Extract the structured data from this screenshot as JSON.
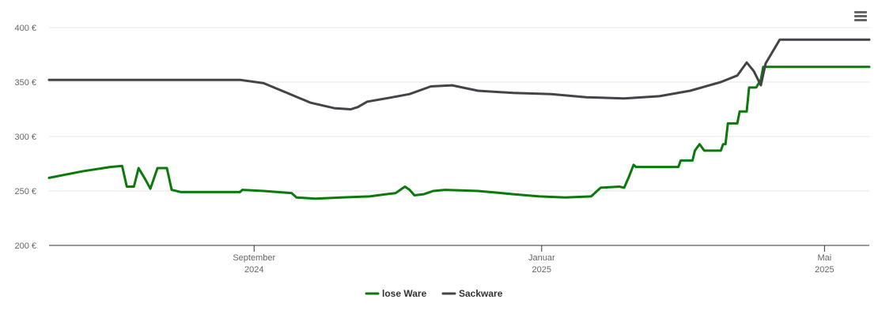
{
  "menu": {
    "icon": "hamburger-menu-icon"
  },
  "chart_data": {
    "type": "line",
    "title": "",
    "xlabel": "",
    "ylabel": "",
    "ylim": [
      200,
      400
    ],
    "y_ticks": [
      "200 €",
      "250 €",
      "300 €",
      "350 €",
      "400 €"
    ],
    "y_tick_values": [
      200,
      250,
      300,
      350,
      400
    ],
    "x_range": [
      "2024-06-06",
      "2025-05-20"
    ],
    "x_ticks": [
      {
        "date": "2024-09-01",
        "month": "September",
        "year": "2024"
      },
      {
        "date": "2025-01-01",
        "month": "Januar",
        "year": "2025"
      },
      {
        "date": "2025-05-01",
        "month": "Mai",
        "year": "2025"
      }
    ],
    "grid": true,
    "legend_position": "bottom-center",
    "series": [
      {
        "name": "lose Ware",
        "color": "#0a7a0a",
        "points": [
          [
            "2024-06-06",
            262
          ],
          [
            "2024-06-20",
            268
          ],
          [
            "2024-07-02",
            272
          ],
          [
            "2024-07-07",
            273
          ],
          [
            "2024-07-09",
            254
          ],
          [
            "2024-07-12",
            254
          ],
          [
            "2024-07-14",
            271
          ],
          [
            "2024-07-17",
            260
          ],
          [
            "2024-07-19",
            252
          ],
          [
            "2024-07-22",
            271
          ],
          [
            "2024-07-26",
            271
          ],
          [
            "2024-07-28",
            251
          ],
          [
            "2024-08-01",
            249
          ],
          [
            "2024-08-15",
            249
          ],
          [
            "2024-08-26",
            249
          ],
          [
            "2024-08-27",
            251
          ],
          [
            "2024-09-05",
            250
          ],
          [
            "2024-09-17",
            248
          ],
          [
            "2024-09-19",
            244
          ],
          [
            "2024-09-27",
            243
          ],
          [
            "2024-10-08",
            244
          ],
          [
            "2024-10-20",
            245
          ],
          [
            "2024-10-27",
            247
          ],
          [
            "2024-10-31",
            248
          ],
          [
            "2024-11-02",
            251
          ],
          [
            "2024-11-04",
            254
          ],
          [
            "2024-11-06",
            251
          ],
          [
            "2024-11-08",
            246
          ],
          [
            "2024-11-12",
            247
          ],
          [
            "2024-11-16",
            250
          ],
          [
            "2024-11-21",
            251
          ],
          [
            "2024-12-05",
            250
          ],
          [
            "2024-12-20",
            247
          ],
          [
            "2024-12-31",
            245
          ],
          [
            "2025-01-11",
            244
          ],
          [
            "2025-01-22",
            245
          ],
          [
            "2025-01-26",
            253
          ],
          [
            "2025-02-03",
            254
          ],
          [
            "2025-02-05",
            253
          ],
          [
            "2025-02-07",
            263
          ],
          [
            "2025-02-09",
            274
          ],
          [
            "2025-02-10",
            272
          ],
          [
            "2025-02-16",
            272
          ],
          [
            "2025-02-28",
            272
          ],
          [
            "2025-03-01",
            278
          ],
          [
            "2025-03-06",
            278
          ],
          [
            "2025-03-07",
            287
          ],
          [
            "2025-03-09",
            293
          ],
          [
            "2025-03-11",
            287
          ],
          [
            "2025-03-18",
            287
          ],
          [
            "2025-03-19",
            293
          ],
          [
            "2025-03-20",
            293
          ],
          [
            "2025-03-21",
            312
          ],
          [
            "2025-03-25",
            312
          ],
          [
            "2025-03-26",
            323
          ],
          [
            "2025-03-29",
            323
          ],
          [
            "2025-03-30",
            345
          ],
          [
            "2025-04-02",
            345
          ],
          [
            "2025-04-04",
            352
          ],
          [
            "2025-04-05",
            364
          ],
          [
            "2025-04-08",
            364
          ],
          [
            "2025-04-10",
            364
          ],
          [
            "2025-04-15",
            364
          ],
          [
            "2025-04-26",
            364
          ],
          [
            "2025-04-28",
            364
          ],
          [
            "2025-04-30",
            364
          ],
          [
            "2025-05-03",
            364
          ],
          [
            "2025-05-05",
            364
          ],
          [
            "2025-05-08",
            364
          ],
          [
            "2025-05-14",
            364
          ],
          [
            "2025-05-16",
            364
          ],
          [
            "2025-05-17",
            364
          ],
          [
            "2025-05-20",
            364
          ]
        ]
      },
      {
        "name": "Sackware",
        "color": "#434348",
        "points": [
          [
            "2024-06-06",
            352
          ],
          [
            "2024-07-20",
            352
          ],
          [
            "2024-08-20",
            352
          ],
          [
            "2024-08-26",
            352
          ],
          [
            "2024-09-05",
            349
          ],
          [
            "2024-09-15",
            340
          ],
          [
            "2024-09-25",
            331
          ],
          [
            "2024-10-05",
            326
          ],
          [
            "2024-10-12",
            325
          ],
          [
            "2024-10-15",
            327
          ],
          [
            "2024-10-19",
            332
          ],
          [
            "2024-10-27",
            335
          ],
          [
            "2024-11-06",
            339
          ],
          [
            "2024-11-15",
            346
          ],
          [
            "2024-11-24",
            347
          ],
          [
            "2024-12-05",
            342
          ],
          [
            "2024-12-20",
            340
          ],
          [
            "2025-01-05",
            339
          ],
          [
            "2025-01-20",
            336
          ],
          [
            "2025-02-05",
            335
          ],
          [
            "2025-02-20",
            337
          ],
          [
            "2025-03-05",
            342
          ],
          [
            "2025-03-18",
            350
          ],
          [
            "2025-03-25",
            356
          ],
          [
            "2025-03-29",
            368
          ],
          [
            "2025-04-01",
            360
          ],
          [
            "2025-04-04",
            347
          ],
          [
            "2025-04-06",
            367
          ],
          [
            "2025-04-12",
            389
          ],
          [
            "2025-04-25",
            389
          ],
          [
            "2025-05-20",
            389
          ]
        ]
      }
    ]
  }
}
